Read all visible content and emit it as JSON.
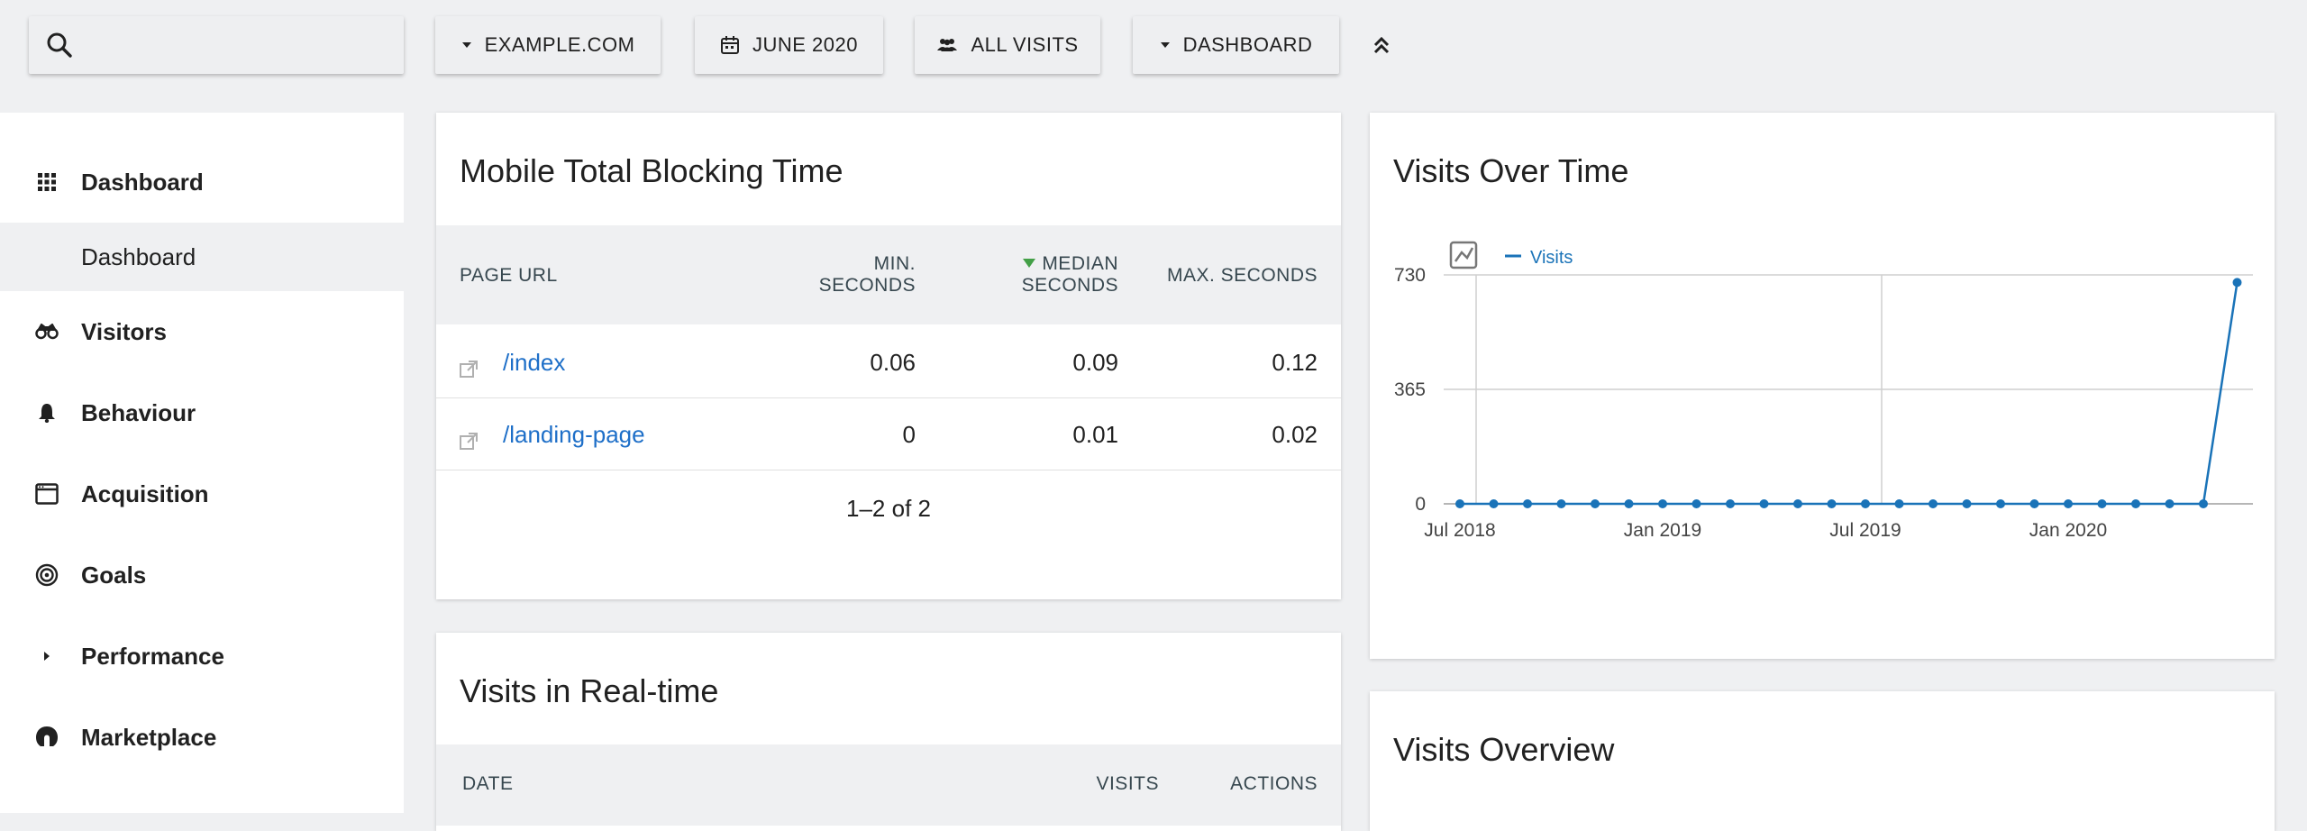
{
  "toolbar": {
    "site_label": "EXAMPLE.COM",
    "date_label": "JUNE 2020",
    "segment_label": "ALL VISITS",
    "dashboard_label": "DASHBOARD"
  },
  "sidebar": {
    "items": [
      {
        "label": "Dashboard",
        "icon": "grid-icon"
      },
      {
        "label": "Visitors",
        "icon": "binoculars-icon"
      },
      {
        "label": "Behaviour",
        "icon": "bell-icon"
      },
      {
        "label": "Acquisition",
        "icon": "browser-window-icon"
      },
      {
        "label": "Goals",
        "icon": "target-icon"
      },
      {
        "label": "Performance",
        "icon": "caret-right-icon"
      },
      {
        "label": "Marketplace",
        "icon": "marketplace-icon"
      }
    ],
    "sub_item": "Dashboard"
  },
  "blocking_widget": {
    "title": "Mobile Total Blocking Time",
    "columns": {
      "page_url": "PAGE URL",
      "min_1": "MIN.",
      "min_2": "SECONDS",
      "median_1": "MEDIAN",
      "median_2": "SECONDS",
      "max": "MAX. SECONDS"
    },
    "rows": [
      {
        "url": "/index",
        "min": "0.06",
        "median": "0.09",
        "max": "0.12"
      },
      {
        "url": "/landing-page",
        "min": "0",
        "median": "0.01",
        "max": "0.02"
      }
    ],
    "pagination": "1–2 of 2"
  },
  "realtime_widget": {
    "title": "Visits in Real-time",
    "columns": {
      "date": "DATE",
      "visits": "VISITS",
      "actions": "ACTIONS"
    }
  },
  "visits_chart": {
    "title": "Visits Over Time",
    "legend": "Visits"
  },
  "overview_widget": {
    "title": "Visits Overview"
  },
  "colors": {
    "accent": "#1e6fc8",
    "series": "#1a73b8",
    "sort_indicator": "#43a047"
  },
  "chart_data": {
    "type": "line",
    "title": "Visits Over Time",
    "xlabel": "",
    "ylabel": "",
    "ylim": [
      0,
      730
    ],
    "yticks": [
      0,
      365,
      730
    ],
    "x_tick_labels": [
      "Jul 2018",
      "Jan 2019",
      "Jul 2019",
      "Jan 2020"
    ],
    "series": [
      {
        "name": "Visits",
        "x": [
          "2018-07",
          "2018-08",
          "2018-09",
          "2018-10",
          "2018-11",
          "2018-12",
          "2019-01",
          "2019-02",
          "2019-03",
          "2019-04",
          "2019-05",
          "2019-06",
          "2019-07",
          "2019-08",
          "2019-09",
          "2019-10",
          "2019-11",
          "2019-12",
          "2020-01",
          "2020-02",
          "2020-03",
          "2020-04",
          "2020-05",
          "2020-06"
        ],
        "values": [
          0,
          0,
          0,
          0,
          0,
          0,
          0,
          0,
          0,
          0,
          0,
          0,
          0,
          0,
          0,
          0,
          0,
          0,
          0,
          0,
          0,
          0,
          0,
          706
        ]
      }
    ],
    "grid": true,
    "legend_position": "top-left"
  }
}
